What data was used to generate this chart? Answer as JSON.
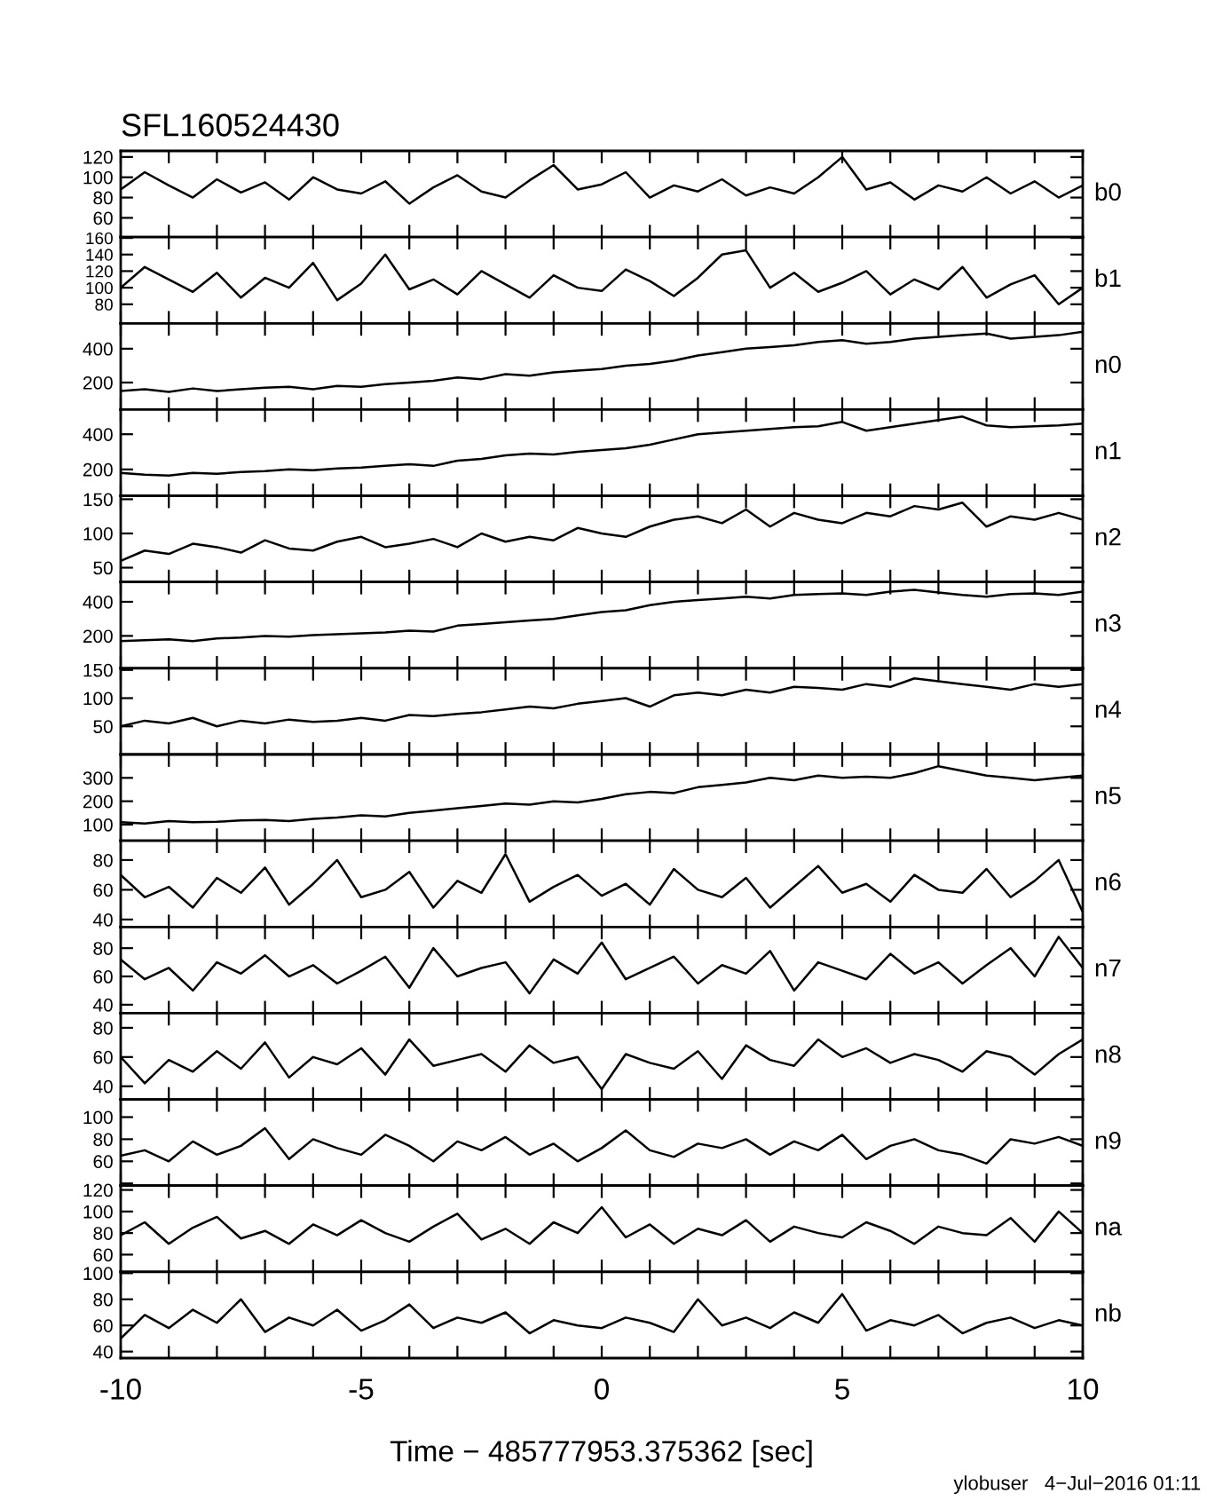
{
  "chart_data": [
    {
      "type": "line",
      "title": "SFL160524430",
      "x": [
        -10,
        -9.5,
        -9,
        -8.5,
        -8,
        -7.5,
        -7,
        -6.5,
        -6,
        -5.5,
        -5,
        -4.5,
        -4,
        -3.5,
        -3,
        -2.5,
        -2,
        -1.5,
        -1,
        -0.5,
        0,
        0.5,
        1,
        1.5,
        2,
        2.5,
        3,
        3.5,
        4,
        4.5,
        5,
        5.5,
        6,
        6.5,
        7,
        7.5,
        8,
        8.5,
        9,
        9.5,
        10
      ],
      "xlim": [
        -10,
        10
      ],
      "xticks": [
        -10,
        {
          "value": -9,
          "label": null
        },
        {
          "value": -8,
          "label": null
        },
        {
          "value": -7,
          "label": null
        },
        {
          "value": -6,
          "label": null
        },
        -5,
        {
          "value": -4,
          "label": null
        },
        {
          "value": -3,
          "label": null
        },
        {
          "value": -2,
          "label": null
        },
        {
          "value": -1,
          "label": null
        },
        0,
        {
          "value": 1,
          "label": null
        },
        {
          "value": 2,
          "label": null
        },
        {
          "value": 3,
          "label": null
        },
        {
          "value": 4,
          "label": null
        },
        5,
        {
          "value": 6,
          "label": null
        },
        {
          "value": 7,
          "label": null
        },
        {
          "value": 8,
          "label": null
        },
        {
          "value": 9,
          "label": null
        },
        10
      ],
      "tick_labels": "y",
      "ylim": [
        41,
        126
      ],
      "yticks": [
        60,
        80,
        100,
        120
      ],
      "series": [
        {
          "name": "b0",
          "color": "#000000",
          "values": [
            88,
            105,
            92,
            80,
            98,
            85,
            95,
            78,
            100,
            88,
            84,
            96,
            74,
            90,
            102,
            86,
            80,
            97,
            112,
            88,
            93,
            105,
            80,
            92,
            86,
            98,
            82,
            90,
            84,
            100,
            120,
            88,
            95,
            78,
            92,
            86,
            100,
            84,
            96,
            80,
            92
          ]
        }
      ]
    },
    {
      "type": "line",
      "x": [
        -10,
        -9.5,
        -9,
        -8.5,
        -8,
        -7.5,
        -7,
        -6.5,
        -6,
        -5.5,
        -5,
        -4.5,
        -4,
        -3.5,
        -3,
        -2.5,
        -2,
        -1.5,
        -1,
        -0.5,
        0,
        0.5,
        1,
        1.5,
        2,
        2.5,
        3,
        3.5,
        4,
        4.5,
        5,
        5.5,
        6,
        6.5,
        7,
        7.5,
        8,
        8.5,
        9,
        9.5,
        10
      ],
      "xlim": [
        -10,
        10
      ],
      "xticks": [
        -10,
        {
          "value": -9,
          "label": null
        },
        {
          "value": -8,
          "label": null
        },
        {
          "value": -7,
          "label": null
        },
        {
          "value": -6,
          "label": null
        },
        -5,
        {
          "value": -4,
          "label": null
        },
        {
          "value": -3,
          "label": null
        },
        {
          "value": -2,
          "label": null
        },
        {
          "value": -1,
          "label": null
        },
        0,
        {
          "value": 1,
          "label": null
        },
        {
          "value": 2,
          "label": null
        },
        {
          "value": 3,
          "label": null
        },
        {
          "value": 4,
          "label": null
        },
        5,
        {
          "value": 6,
          "label": null
        },
        {
          "value": 7,
          "label": null
        },
        {
          "value": 8,
          "label": null
        },
        {
          "value": 9,
          "label": null
        },
        10
      ],
      "tick_labels": "y",
      "ylim": [
        57,
        161
      ],
      "yticks": [
        80,
        100,
        120,
        140,
        160
      ],
      "series": [
        {
          "name": "b1",
          "color": "#000000",
          "values": [
            100,
            125,
            110,
            95,
            118,
            88,
            112,
            100,
            130,
            85,
            105,
            140,
            98,
            110,
            92,
            120,
            104,
            88,
            115,
            100,
            96,
            122,
            108,
            90,
            112,
            140,
            145,
            100,
            118,
            95,
            106,
            120,
            92,
            110,
            98,
            125,
            88,
            104,
            115,
            80,
            100
          ]
        }
      ]
    },
    {
      "type": "line",
      "x": [
        -10,
        -9.5,
        -9,
        -8.5,
        -8,
        -7.5,
        -7,
        -6.5,
        -6,
        -5.5,
        -5,
        -4.5,
        -4,
        -3.5,
        -3,
        -2.5,
        -2,
        -1.5,
        -1,
        -0.5,
        0,
        0.5,
        1,
        1.5,
        2,
        2.5,
        3,
        3.5,
        4,
        4.5,
        5,
        5.5,
        6,
        6.5,
        7,
        7.5,
        8,
        8.5,
        9,
        9.5,
        10
      ],
      "xlim": [
        -10,
        10
      ],
      "xticks": [
        -10,
        {
          "value": -9,
          "label": null
        },
        {
          "value": -8,
          "label": null
        },
        {
          "value": -7,
          "label": null
        },
        {
          "value": -6,
          "label": null
        },
        -5,
        {
          "value": -4,
          "label": null
        },
        {
          "value": -3,
          "label": null
        },
        {
          "value": -2,
          "label": null
        },
        {
          "value": -1,
          "label": null
        },
        0,
        {
          "value": 1,
          "label": null
        },
        {
          "value": 2,
          "label": null
        },
        {
          "value": 3,
          "label": null
        },
        {
          "value": 4,
          "label": null
        },
        5,
        {
          "value": 6,
          "label": null
        },
        {
          "value": 7,
          "label": null
        },
        {
          "value": 8,
          "label": null
        },
        {
          "value": 9,
          "label": null
        },
        10
      ],
      "tick_labels": "y",
      "ylim": [
        40,
        550
      ],
      "yticks": [
        200,
        400
      ],
      "series": [
        {
          "name": "n0",
          "color": "#000000",
          "values": [
            150,
            160,
            145,
            165,
            150,
            160,
            170,
            175,
            160,
            180,
            175,
            190,
            200,
            210,
            230,
            220,
            250,
            240,
            260,
            270,
            280,
            300,
            310,
            330,
            360,
            380,
            400,
            410,
            420,
            440,
            450,
            430,
            440,
            460,
            470,
            480,
            490,
            460,
            470,
            480,
            500
          ]
        }
      ]
    },
    {
      "type": "line",
      "x": [
        -10,
        -9.5,
        -9,
        -8.5,
        -8,
        -7.5,
        -7,
        -6.5,
        -6,
        -5.5,
        -5,
        -4.5,
        -4,
        -3.5,
        -3,
        -2.5,
        -2,
        -1.5,
        -1,
        -0.5,
        0,
        0.5,
        1,
        1.5,
        2,
        2.5,
        3,
        3.5,
        4,
        4.5,
        5,
        5.5,
        6,
        6.5,
        7,
        7.5,
        8,
        8.5,
        9,
        9.5,
        10
      ],
      "xlim": [
        -10,
        10
      ],
      "xticks": [
        -10,
        {
          "value": -9,
          "label": null
        },
        {
          "value": -8,
          "label": null
        },
        {
          "value": -7,
          "label": null
        },
        {
          "value": -6,
          "label": null
        },
        -5,
        {
          "value": -4,
          "label": null
        },
        {
          "value": -3,
          "label": null
        },
        {
          "value": -2,
          "label": null
        },
        {
          "value": -1,
          "label": null
        },
        0,
        {
          "value": 1,
          "label": null
        },
        {
          "value": 2,
          "label": null
        },
        {
          "value": 3,
          "label": null
        },
        {
          "value": 4,
          "label": null
        },
        5,
        {
          "value": 6,
          "label": null
        },
        {
          "value": 7,
          "label": null
        },
        {
          "value": 8,
          "label": null
        },
        {
          "value": 9,
          "label": null
        },
        10
      ],
      "tick_labels": "y",
      "ylim": [
        50,
        540
      ],
      "yticks": [
        200,
        400
      ],
      "series": [
        {
          "name": "n1",
          "color": "#000000",
          "values": [
            180,
            170,
            165,
            180,
            175,
            185,
            190,
            200,
            195,
            205,
            210,
            220,
            230,
            220,
            250,
            260,
            280,
            290,
            285,
            300,
            310,
            320,
            340,
            370,
            400,
            410,
            420,
            430,
            440,
            445,
            470,
            420,
            440,
            460,
            480,
            500,
            450,
            440,
            445,
            450,
            460
          ]
        }
      ]
    },
    {
      "type": "line",
      "x": [
        -10,
        -9.5,
        -9,
        -8.5,
        -8,
        -7.5,
        -7,
        -6.5,
        -6,
        -5.5,
        -5,
        -4.5,
        -4,
        -3.5,
        -3,
        -2.5,
        -2,
        -1.5,
        -1,
        -0.5,
        0,
        0.5,
        1,
        1.5,
        2,
        2.5,
        3,
        3.5,
        4,
        4.5,
        5,
        5.5,
        6,
        6.5,
        7,
        7.5,
        8,
        8.5,
        9,
        9.5,
        10
      ],
      "xlim": [
        -10,
        10
      ],
      "xticks": [
        -10,
        {
          "value": -9,
          "label": null
        },
        {
          "value": -8,
          "label": null
        },
        {
          "value": -7,
          "label": null
        },
        {
          "value": -6,
          "label": null
        },
        -5,
        {
          "value": -4,
          "label": null
        },
        {
          "value": -3,
          "label": null
        },
        {
          "value": -2,
          "label": null
        },
        {
          "value": -1,
          "label": null
        },
        0,
        {
          "value": 1,
          "label": null
        },
        {
          "value": 2,
          "label": null
        },
        {
          "value": 3,
          "label": null
        },
        {
          "value": 4,
          "label": null
        },
        5,
        {
          "value": 6,
          "label": null
        },
        {
          "value": 7,
          "label": null
        },
        {
          "value": 8,
          "label": null
        },
        {
          "value": 9,
          "label": null
        },
        10
      ],
      "tick_labels": "y",
      "ylim": [
        29,
        155
      ],
      "yticks": [
        50,
        100,
        150
      ],
      "series": [
        {
          "name": "n2",
          "color": "#000000",
          "values": [
            60,
            75,
            70,
            85,
            80,
            72,
            90,
            78,
            75,
            88,
            95,
            80,
            85,
            92,
            80,
            100,
            88,
            95,
            90,
            108,
            100,
            95,
            110,
            120,
            125,
            115,
            135,
            110,
            130,
            120,
            115,
            130,
            125,
            140,
            135,
            145,
            110,
            125,
            120,
            130,
            120
          ]
        }
      ]
    },
    {
      "type": "line",
      "x": [
        -10,
        -9.5,
        -9,
        -8.5,
        -8,
        -7.5,
        -7,
        -6.5,
        -6,
        -5.5,
        -5,
        -4.5,
        -4,
        -3.5,
        -3,
        -2.5,
        -2,
        -1.5,
        -1,
        -0.5,
        0,
        0.5,
        1,
        1.5,
        2,
        2.5,
        3,
        3.5,
        4,
        4.5,
        5,
        5.5,
        6,
        6.5,
        7,
        7.5,
        8,
        8.5,
        9,
        9.5,
        10
      ],
      "xlim": [
        -10,
        10
      ],
      "xticks": [
        -10,
        {
          "value": -9,
          "label": null
        },
        {
          "value": -8,
          "label": null
        },
        {
          "value": -7,
          "label": null
        },
        {
          "value": -6,
          "label": null
        },
        -5,
        {
          "value": -4,
          "label": null
        },
        {
          "value": -3,
          "label": null
        },
        {
          "value": -2,
          "label": null
        },
        {
          "value": -1,
          "label": null
        },
        0,
        {
          "value": 1,
          "label": null
        },
        {
          "value": 2,
          "label": null
        },
        {
          "value": 3,
          "label": null
        },
        {
          "value": 4,
          "label": null
        },
        5,
        {
          "value": 6,
          "label": null
        },
        {
          "value": 7,
          "label": null
        },
        {
          "value": 8,
          "label": null
        },
        {
          "value": 9,
          "label": null
        },
        10
      ],
      "tick_labels": "y",
      "ylim": [
        10,
        516
      ],
      "yticks": [
        200,
        400
      ],
      "series": [
        {
          "name": "n3",
          "color": "#000000",
          "values": [
            170,
            175,
            180,
            170,
            185,
            190,
            200,
            195,
            205,
            210,
            215,
            220,
            230,
            225,
            260,
            270,
            280,
            290,
            300,
            320,
            340,
            350,
            380,
            400,
            410,
            420,
            430,
            420,
            440,
            445,
            450,
            440,
            460,
            470,
            455,
            440,
            430,
            445,
            450,
            440,
            460
          ]
        }
      ]
    },
    {
      "type": "line",
      "x": [
        -10,
        -9.5,
        -9,
        -8.5,
        -8,
        -7.5,
        -7,
        -6.5,
        -6,
        -5.5,
        -5,
        -4.5,
        -4,
        -3.5,
        -3,
        -2.5,
        -2,
        -1.5,
        -1,
        -0.5,
        0,
        0.5,
        1,
        1.5,
        2,
        2.5,
        3,
        3.5,
        4,
        4.5,
        5,
        5.5,
        6,
        6.5,
        7,
        7.5,
        8,
        8.5,
        9,
        9.5,
        10
      ],
      "xlim": [
        -10,
        10
      ],
      "xticks": [
        -10,
        {
          "value": -9,
          "label": null
        },
        {
          "value": -8,
          "label": null
        },
        {
          "value": -7,
          "label": null
        },
        {
          "value": -6,
          "label": null
        },
        -5,
        {
          "value": -4,
          "label": null
        },
        {
          "value": -3,
          "label": null
        },
        {
          "value": -2,
          "label": null
        },
        {
          "value": -1,
          "label": null
        },
        0,
        {
          "value": 1,
          "label": null
        },
        {
          "value": 2,
          "label": null
        },
        {
          "value": 3,
          "label": null
        },
        {
          "value": 4,
          "label": null
        },
        5,
        {
          "value": 6,
          "label": null
        },
        {
          "value": 7,
          "label": null
        },
        {
          "value": 8,
          "label": null
        },
        {
          "value": 9,
          "label": null
        },
        10
      ],
      "tick_labels": "y",
      "ylim": [
        0,
        153
      ],
      "yticks": [
        50,
        100,
        150
      ],
      "series": [
        {
          "name": "n4",
          "color": "#000000",
          "values": [
            50,
            60,
            55,
            65,
            50,
            60,
            55,
            62,
            58,
            60,
            65,
            60,
            70,
            68,
            72,
            75,
            80,
            85,
            82,
            90,
            95,
            100,
            85,
            105,
            110,
            105,
            115,
            110,
            120,
            118,
            115,
            125,
            120,
            135,
            130,
            125,
            120,
            115,
            125,
            120,
            125
          ]
        }
      ]
    },
    {
      "type": "line",
      "x": [
        -10,
        -9.5,
        -9,
        -8.5,
        -8,
        -7.5,
        -7,
        -6.5,
        -6,
        -5.5,
        -5,
        -4.5,
        -4,
        -3.5,
        -3,
        -2.5,
        -2,
        -1.5,
        -1,
        -0.5,
        0,
        0.5,
        1,
        1.5,
        2,
        2.5,
        3,
        3.5,
        4,
        4.5,
        5,
        5.5,
        6,
        6.5,
        7,
        7.5,
        8,
        8.5,
        9,
        9.5,
        10
      ],
      "xlim": [
        -10,
        10
      ],
      "xticks": [
        -10,
        {
          "value": -9,
          "label": null
        },
        {
          "value": -8,
          "label": null
        },
        {
          "value": -7,
          "label": null
        },
        {
          "value": -6,
          "label": null
        },
        -5,
        {
          "value": -4,
          "label": null
        },
        {
          "value": -3,
          "label": null
        },
        {
          "value": -2,
          "label": null
        },
        {
          "value": -1,
          "label": null
        },
        0,
        {
          "value": 1,
          "label": null
        },
        {
          "value": 2,
          "label": null
        },
        {
          "value": 3,
          "label": null
        },
        {
          "value": 4,
          "label": null
        },
        5,
        {
          "value": 6,
          "label": null
        },
        {
          "value": 7,
          "label": null
        },
        {
          "value": 8,
          "label": null
        },
        {
          "value": 9,
          "label": null
        },
        10
      ],
      "tick_labels": "y",
      "ylim": [
        31,
        400
      ],
      "yticks": [
        100,
        200,
        300
      ],
      "series": [
        {
          "name": "n5",
          "color": "#000000",
          "values": [
            110,
            105,
            115,
            110,
            112,
            118,
            120,
            115,
            125,
            130,
            140,
            135,
            150,
            160,
            170,
            180,
            190,
            185,
            200,
            195,
            210,
            230,
            240,
            235,
            260,
            270,
            280,
            300,
            290,
            310,
            300,
            305,
            300,
            320,
            350,
            330,
            310,
            300,
            290,
            300,
            310
          ]
        }
      ]
    },
    {
      "type": "line",
      "x": [
        -10,
        -9.5,
        -9,
        -8.5,
        -8,
        -7.5,
        -7,
        -6.5,
        -6,
        -5.5,
        -5,
        -4.5,
        -4,
        -3.5,
        -3,
        -2.5,
        -2,
        -1.5,
        -1,
        -0.5,
        0,
        0.5,
        1,
        1.5,
        2,
        2.5,
        3,
        3.5,
        4,
        4.5,
        5,
        5.5,
        6,
        6.5,
        7,
        7.5,
        8,
        8.5,
        9,
        9.5,
        10
      ],
      "xlim": [
        -10,
        10
      ],
      "xticks": [
        -10,
        {
          "value": -9,
          "label": null
        },
        {
          "value": -8,
          "label": null
        },
        {
          "value": -7,
          "label": null
        },
        {
          "value": -6,
          "label": null
        },
        -5,
        {
          "value": -4,
          "label": null
        },
        {
          "value": -3,
          "label": null
        },
        {
          "value": -2,
          "label": null
        },
        {
          "value": -1,
          "label": null
        },
        0,
        {
          "value": 1,
          "label": null
        },
        {
          "value": 2,
          "label": null
        },
        {
          "value": 3,
          "label": null
        },
        {
          "value": 4,
          "label": null
        },
        5,
        {
          "value": 6,
          "label": null
        },
        {
          "value": 7,
          "label": null
        },
        {
          "value": 8,
          "label": null
        },
        {
          "value": 9,
          "label": null
        },
        10
      ],
      "tick_labels": "y",
      "ylim": [
        35,
        93
      ],
      "yticks": [
        40,
        60,
        80
      ],
      "series": [
        {
          "name": "n6",
          "color": "#000000",
          "values": [
            70,
            55,
            62,
            48,
            68,
            58,
            75,
            50,
            64,
            80,
            55,
            60,
            72,
            48,
            66,
            58,
            84,
            52,
            62,
            70,
            56,
            64,
            50,
            74,
            60,
            55,
            68,
            48,
            62,
            76,
            58,
            64,
            52,
            70,
            60,
            58,
            74,
            55,
            66,
            80,
            45
          ]
        }
      ]
    },
    {
      "type": "line",
      "x": [
        -10,
        -9.5,
        -9,
        -8.5,
        -8,
        -7.5,
        -7,
        -6.5,
        -6,
        -5.5,
        -5,
        -4.5,
        -4,
        -3.5,
        -3,
        -2.5,
        -2,
        -1.5,
        -1,
        -0.5,
        0,
        0.5,
        1,
        1.5,
        2,
        2.5,
        3,
        3.5,
        4,
        4.5,
        5,
        5.5,
        6,
        6.5,
        7,
        7.5,
        8,
        8.5,
        9,
        9.5,
        10
      ],
      "xlim": [
        -10,
        10
      ],
      "xticks": [
        -10,
        {
          "value": -9,
          "label": null
        },
        {
          "value": -8,
          "label": null
        },
        {
          "value": -7,
          "label": null
        },
        {
          "value": -6,
          "label": null
        },
        -5,
        {
          "value": -4,
          "label": null
        },
        {
          "value": -3,
          "label": null
        },
        {
          "value": -2,
          "label": null
        },
        {
          "value": -1,
          "label": null
        },
        0,
        {
          "value": 1,
          "label": null
        },
        {
          "value": 2,
          "label": null
        },
        {
          "value": 3,
          "label": null
        },
        {
          "value": 4,
          "label": null
        },
        5,
        {
          "value": 6,
          "label": null
        },
        {
          "value": 7,
          "label": null
        },
        {
          "value": 8,
          "label": null
        },
        {
          "value": 9,
          "label": null
        },
        10
      ],
      "tick_labels": "y",
      "ylim": [
        34,
        95
      ],
      "yticks": [
        40,
        60,
        80
      ],
      "series": [
        {
          "name": "n7",
          "color": "#000000",
          "values": [
            72,
            58,
            66,
            50,
            70,
            62,
            75,
            60,
            68,
            55,
            64,
            74,
            52,
            80,
            60,
            66,
            70,
            48,
            72,
            62,
            84,
            58,
            66,
            74,
            55,
            68,
            62,
            78,
            50,
            70,
            64,
            58,
            76,
            62,
            70,
            55,
            68,
            80,
            60,
            88,
            66
          ]
        }
      ]
    },
    {
      "type": "line",
      "x": [
        -10,
        -9.5,
        -9,
        -8.5,
        -8,
        -7.5,
        -7,
        -6.5,
        -6,
        -5.5,
        -5,
        -4.5,
        -4,
        -3.5,
        -3,
        -2.5,
        -2,
        -1.5,
        -1,
        -0.5,
        0,
        0.5,
        1,
        1.5,
        2,
        2.5,
        3,
        3.5,
        4,
        4.5,
        5,
        5.5,
        6,
        6.5,
        7,
        7.5,
        8,
        8.5,
        9,
        9.5,
        10
      ],
      "xlim": [
        -10,
        10
      ],
      "xticks": [
        -10,
        {
          "value": -9,
          "label": null
        },
        {
          "value": -8,
          "label": null
        },
        {
          "value": -7,
          "label": null
        },
        {
          "value": -6,
          "label": null
        },
        -5,
        {
          "value": -4,
          "label": null
        },
        {
          "value": -3,
          "label": null
        },
        {
          "value": -2,
          "label": null
        },
        {
          "value": -1,
          "label": null
        },
        0,
        {
          "value": 1,
          "label": null
        },
        {
          "value": 2,
          "label": null
        },
        {
          "value": 3,
          "label": null
        },
        {
          "value": 4,
          "label": null
        },
        5,
        {
          "value": 6,
          "label": null
        },
        {
          "value": 7,
          "label": null
        },
        {
          "value": 8,
          "label": null
        },
        {
          "value": 9,
          "label": null
        },
        10
      ],
      "tick_labels": "y",
      "ylim": [
        31,
        90
      ],
      "yticks": [
        40,
        60,
        80
      ],
      "series": [
        {
          "name": "n8",
          "color": "#000000",
          "values": [
            60,
            42,
            58,
            50,
            64,
            52,
            70,
            46,
            60,
            55,
            66,
            48,
            72,
            54,
            58,
            62,
            50,
            68,
            56,
            60,
            38,
            62,
            56,
            52,
            64,
            45,
            68,
            58,
            54,
            72,
            60,
            66,
            56,
            62,
            58,
            50,
            64,
            60,
            48,
            62,
            72
          ]
        }
      ]
    },
    {
      "type": "line",
      "x": [
        -10,
        -9.5,
        -9,
        -8.5,
        -8,
        -7.5,
        -7,
        -6.5,
        -6,
        -5.5,
        -5,
        -4.5,
        -4,
        -3.5,
        -3,
        -2.5,
        -2,
        -1.5,
        -1,
        -0.5,
        0,
        0.5,
        1,
        1.5,
        2,
        2.5,
        3,
        3.5,
        4,
        4.5,
        5,
        5.5,
        6,
        6.5,
        7,
        7.5,
        8,
        8.5,
        9,
        9.5,
        10
      ],
      "xlim": [
        -10,
        10
      ],
      "xticks": [
        -10,
        {
          "value": -9,
          "label": null
        },
        {
          "value": -8,
          "label": null
        },
        {
          "value": -7,
          "label": null
        },
        {
          "value": -6,
          "label": null
        },
        -5,
        {
          "value": -4,
          "label": null
        },
        {
          "value": -3,
          "label": null
        },
        {
          "value": -2,
          "label": null
        },
        {
          "value": -1,
          "label": null
        },
        0,
        {
          "value": 1,
          "label": null
        },
        {
          "value": 2,
          "label": null
        },
        {
          "value": 3,
          "label": null
        },
        {
          "value": 4,
          "label": null
        },
        5,
        {
          "value": 6,
          "label": null
        },
        {
          "value": 7,
          "label": null
        },
        {
          "value": 8,
          "label": null
        },
        {
          "value": 9,
          "label": null
        },
        10
      ],
      "tick_labels": "y",
      "ylim": [
        38,
        116
      ],
      "yticks": [
        {
          "value": 40,
          "label": null
        },
        60,
        80,
        100
      ],
      "series": [
        {
          "name": "n9",
          "color": "#000000",
          "values": [
            65,
            70,
            60,
            78,
            66,
            74,
            90,
            62,
            80,
            72,
            66,
            84,
            74,
            60,
            78,
            70,
            82,
            66,
            76,
            60,
            72,
            88,
            70,
            64,
            76,
            72,
            80,
            66,
            78,
            70,
            84,
            62,
            74,
            80,
            70,
            66,
            58,
            80,
            76,
            82,
            74
          ]
        }
      ]
    },
    {
      "type": "line",
      "x": [
        -10,
        -9.5,
        -9,
        -8.5,
        -8,
        -7.5,
        -7,
        -6.5,
        -6,
        -5.5,
        -5,
        -4.5,
        -4,
        -3.5,
        -3,
        -2.5,
        -2,
        -1.5,
        -1,
        -0.5,
        0,
        0.5,
        1,
        1.5,
        2,
        2.5,
        3,
        3.5,
        4,
        4.5,
        5,
        5.5,
        6,
        6.5,
        7,
        7.5,
        8,
        8.5,
        9,
        9.5,
        10
      ],
      "xlim": [
        -10,
        10
      ],
      "xticks": [
        -10,
        {
          "value": -9,
          "label": null
        },
        {
          "value": -8,
          "label": null
        },
        {
          "value": -7,
          "label": null
        },
        {
          "value": -6,
          "label": null
        },
        -5,
        {
          "value": -4,
          "label": null
        },
        {
          "value": -3,
          "label": null
        },
        {
          "value": -2,
          "label": null
        },
        {
          "value": -1,
          "label": null
        },
        0,
        {
          "value": 1,
          "label": null
        },
        {
          "value": 2,
          "label": null
        },
        {
          "value": 3,
          "label": null
        },
        {
          "value": 4,
          "label": null
        },
        5,
        {
          "value": 6,
          "label": null
        },
        {
          "value": 7,
          "label": null
        },
        {
          "value": 8,
          "label": null
        },
        {
          "value": 9,
          "label": null
        },
        10
      ],
      "tick_labels": "y",
      "ylim": [
        44,
        124
      ],
      "yticks": [
        60,
        80,
        100,
        120
      ],
      "series": [
        {
          "name": "na",
          "color": "#000000",
          "values": [
            78,
            90,
            70,
            85,
            95,
            75,
            82,
            70,
            88,
            78,
            92,
            80,
            72,
            86,
            98,
            74,
            84,
            70,
            90,
            80,
            104,
            76,
            88,
            70,
            84,
            78,
            92,
            72,
            86,
            80,
            76,
            90,
            82,
            70,
            86,
            80,
            78,
            94,
            72,
            100,
            80
          ]
        }
      ]
    },
    {
      "type": "line",
      "xlabel": "Time − 485777953.375362 [sec]",
      "annotations": [
        "ylobuser   4−Jul−2016 01:11"
      ],
      "x": [
        -10,
        -9.5,
        -9,
        -8.5,
        -8,
        -7.5,
        -7,
        -6.5,
        -6,
        -5.5,
        -5,
        -4.5,
        -4,
        -3.5,
        -3,
        -2.5,
        -2,
        -1.5,
        -1,
        -0.5,
        0,
        0.5,
        1,
        1.5,
        2,
        2.5,
        3,
        3.5,
        4,
        4.5,
        5,
        5.5,
        6,
        6.5,
        7,
        7.5,
        8,
        8.5,
        9,
        9.5,
        10
      ],
      "xlim": [
        -10,
        10
      ],
      "xticks": [
        -10,
        {
          "value": -9,
          "label": null
        },
        {
          "value": -8,
          "label": null
        },
        {
          "value": -7,
          "label": null
        },
        {
          "value": -6,
          "label": null
        },
        -5,
        {
          "value": -4,
          "label": null
        },
        {
          "value": -3,
          "label": null
        },
        {
          "value": -2,
          "label": null
        },
        {
          "value": -1,
          "label": null
        },
        0,
        {
          "value": 1,
          "label": null
        },
        {
          "value": 2,
          "label": null
        },
        {
          "value": 3,
          "label": null
        },
        {
          "value": 4,
          "label": null
        },
        5,
        {
          "value": 6,
          "label": null
        },
        {
          "value": 7,
          "label": null
        },
        {
          "value": 8,
          "label": null
        },
        {
          "value": 9,
          "label": null
        },
        10
      ],
      "ylim": [
        35,
        101
      ],
      "yticks": [
        40,
        60,
        80,
        100
      ],
      "series": [
        {
          "name": "nb",
          "color": "#000000",
          "values": [
            50,
            68,
            58,
            72,
            62,
            80,
            55,
            66,
            60,
            72,
            56,
            64,
            76,
            58,
            66,
            62,
            70,
            54,
            64,
            60,
            58,
            66,
            62,
            55,
            80,
            60,
            66,
            58,
            70,
            62,
            84,
            56,
            64,
            60,
            68,
            54,
            62,
            66,
            58,
            64,
            60
          ]
        }
      ]
    }
  ]
}
